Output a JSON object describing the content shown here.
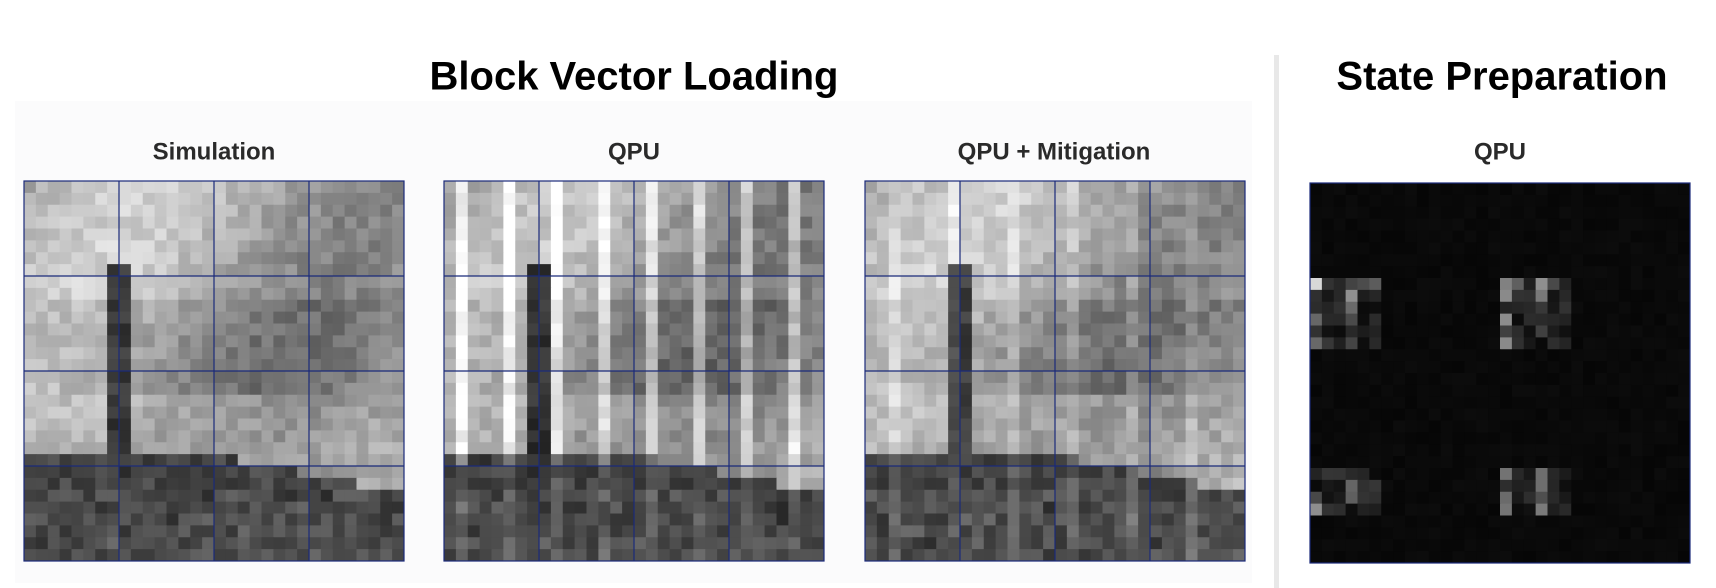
{
  "sections": [
    {
      "title": "Block Vector Loading",
      "panels": [
        {
          "label": "Simulation"
        },
        {
          "label": "QPU"
        },
        {
          "label": "QPU + Mitigation"
        }
      ]
    },
    {
      "title": "State Preparation",
      "panels": [
        {
          "label": "QPU"
        }
      ]
    }
  ]
}
